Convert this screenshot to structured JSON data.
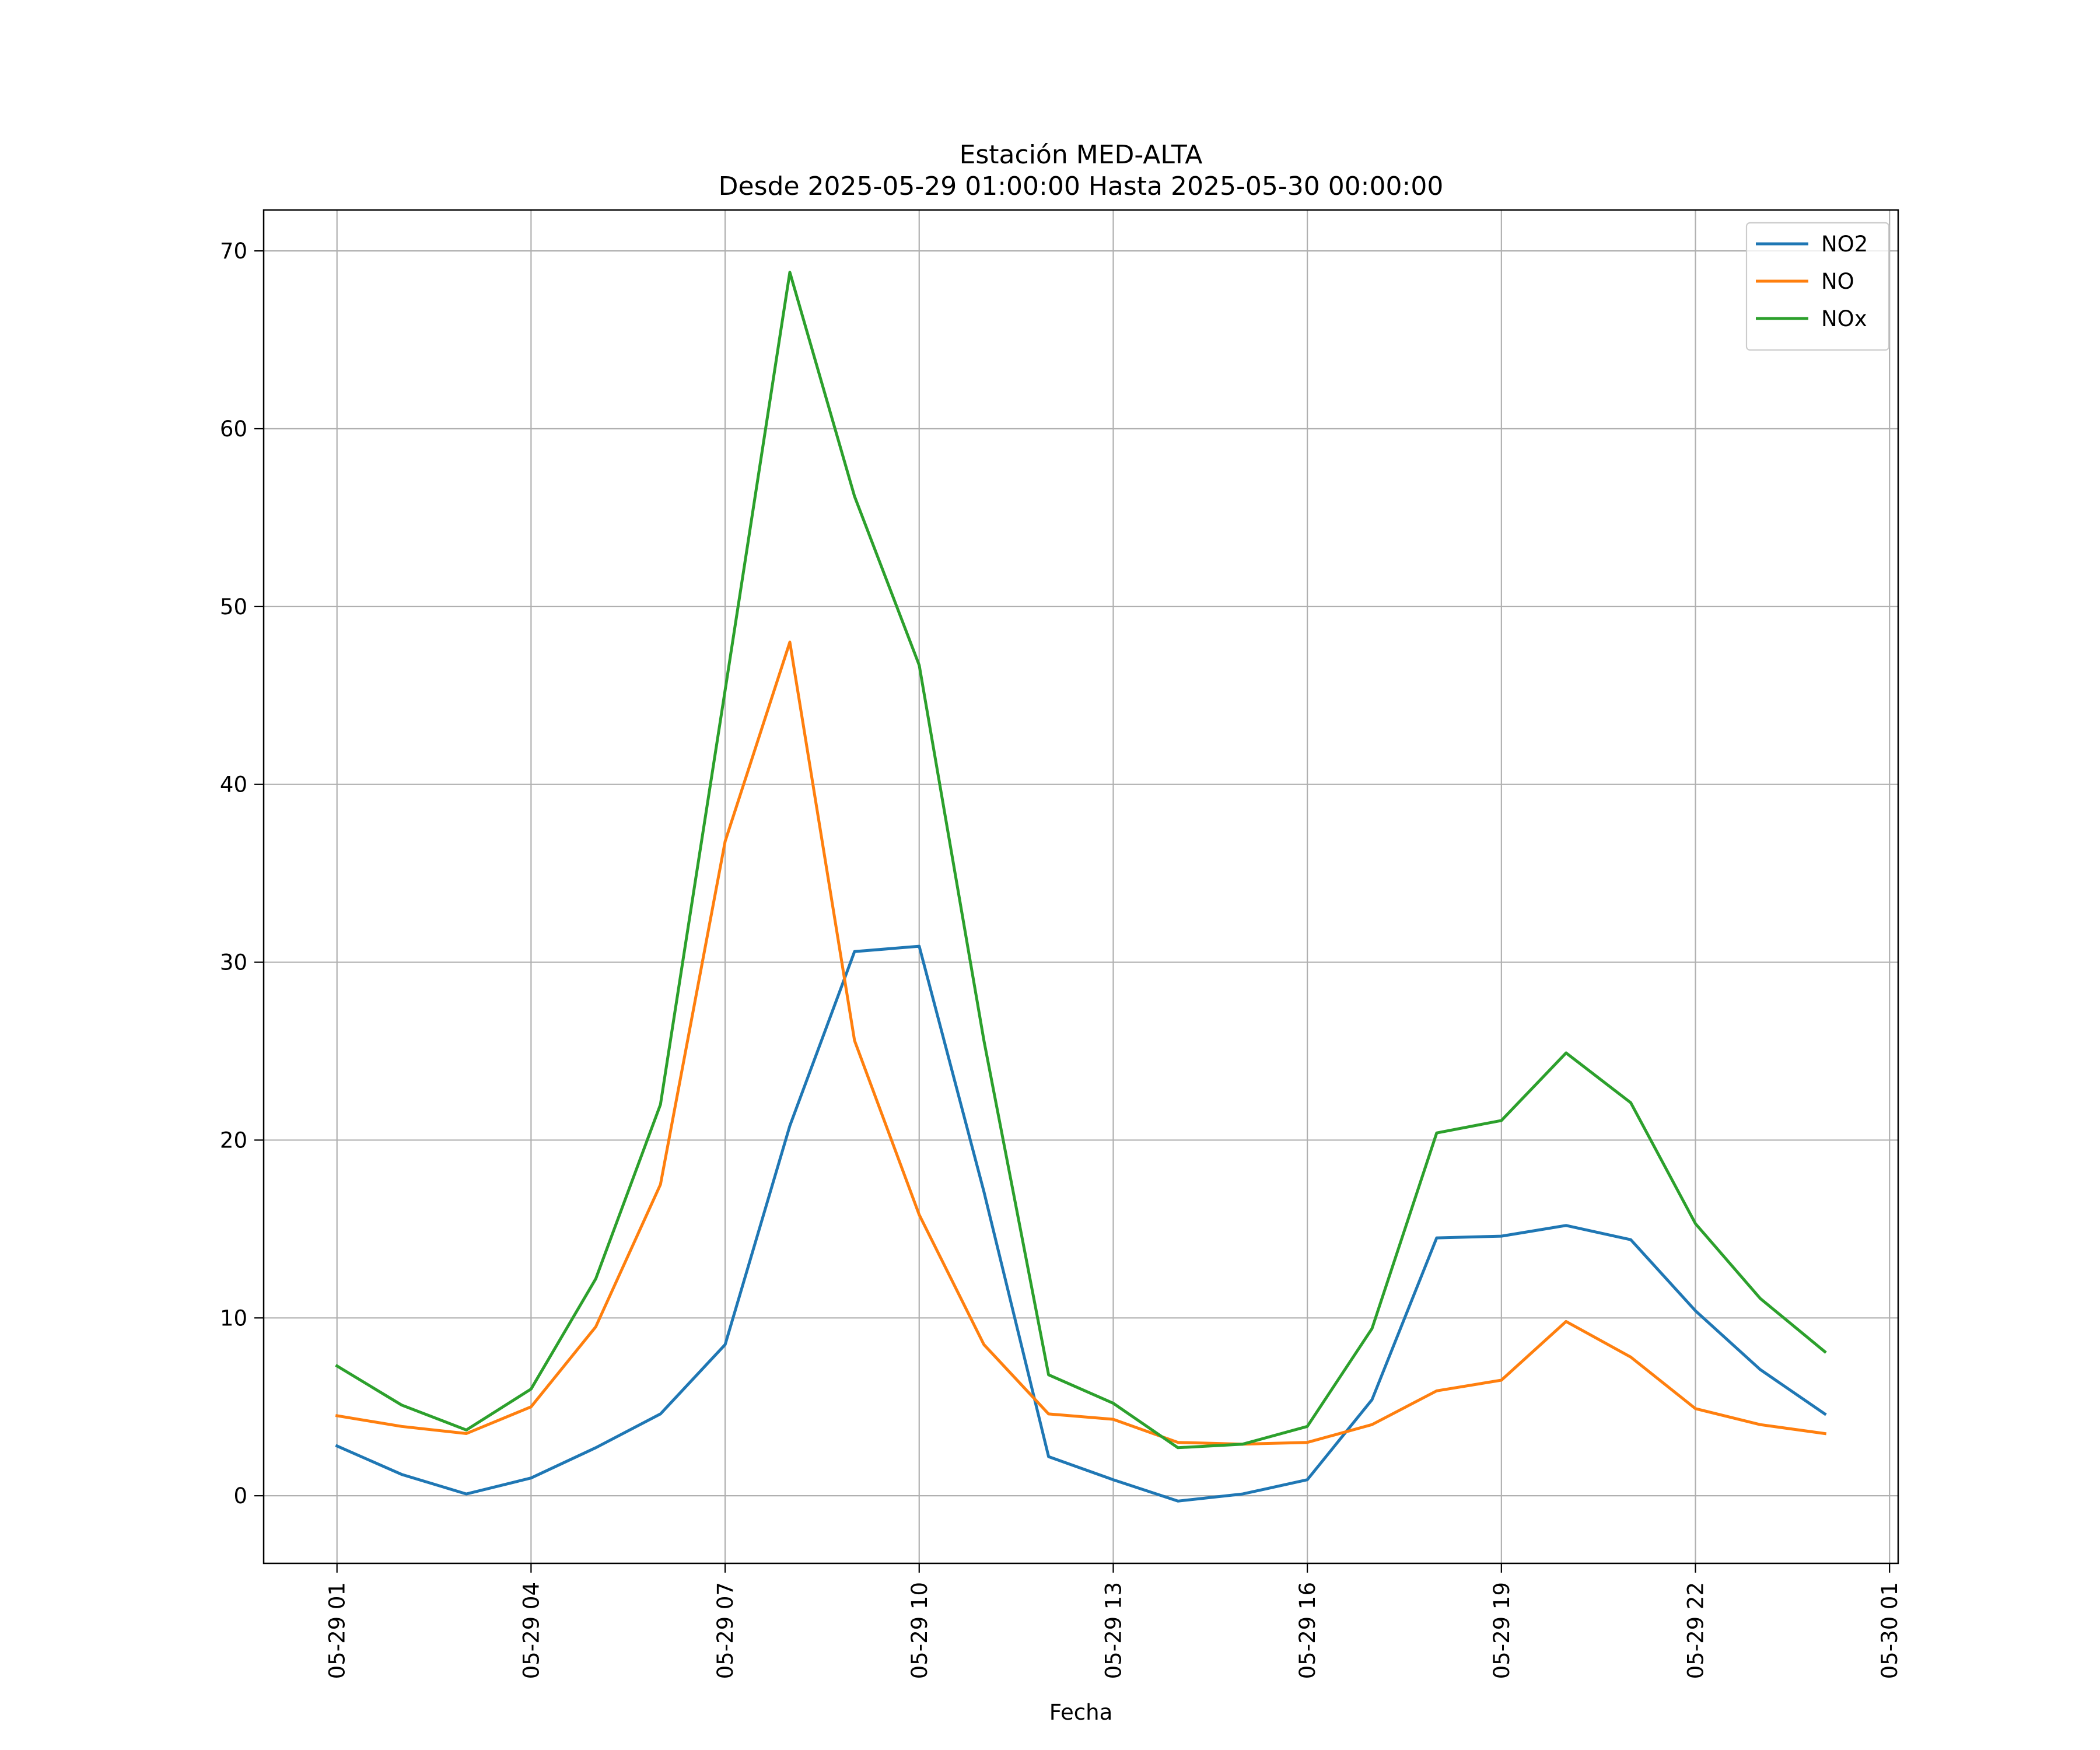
{
  "chart_data": {
    "type": "line",
    "title": "Estación MED-ALTA",
    "subtitle": "Desde 2025-05-29 01:00:00 Hasta 2025-05-30 00:00:00",
    "xlabel": "Fecha",
    "ylabel": "",
    "x": [
      "2025-05-29 01:00",
      "2025-05-29 02:00",
      "2025-05-29 03:00",
      "2025-05-29 04:00",
      "2025-05-29 05:00",
      "2025-05-29 06:00",
      "2025-05-29 07:00",
      "2025-05-29 08:00",
      "2025-05-29 09:00",
      "2025-05-29 10:00",
      "2025-05-29 11:00",
      "2025-05-29 12:00",
      "2025-05-29 13:00",
      "2025-05-29 14:00",
      "2025-05-29 15:00",
      "2025-05-29 16:00",
      "2025-05-29 17:00",
      "2025-05-29 18:00",
      "2025-05-29 19:00",
      "2025-05-29 20:00",
      "2025-05-29 21:00",
      "2025-05-29 22:00",
      "2025-05-29 23:00",
      "2025-05-30 00:00"
    ],
    "xlim": [
      "2025-05-28 23:52",
      "2025-05-30 01:08"
    ],
    "xticks": [
      {
        "x": "2025-05-29 01:00",
        "label": "05-29 01"
      },
      {
        "x": "2025-05-29 04:00",
        "label": "05-29 04"
      },
      {
        "x": "2025-05-29 07:00",
        "label": "05-29 07"
      },
      {
        "x": "2025-05-29 10:00",
        "label": "05-29 10"
      },
      {
        "x": "2025-05-29 13:00",
        "label": "05-29 13"
      },
      {
        "x": "2025-05-29 16:00",
        "label": "05-29 16"
      },
      {
        "x": "2025-05-29 19:00",
        "label": "05-29 19"
      },
      {
        "x": "2025-05-29 22:00",
        "label": "05-29 22"
      },
      {
        "x": "2025-05-30 01:00",
        "label": "05-30 01"
      }
    ],
    "ylim": [
      -3.8,
      72.3
    ],
    "yticks": [
      0,
      10,
      20,
      30,
      40,
      50,
      60,
      70
    ],
    "grid": true,
    "legend_position": "top-right",
    "series": [
      {
        "name": "NO2",
        "color": "#1f77b4",
        "values": [
          2.8,
          1.2,
          0.1,
          1.0,
          2.7,
          4.6,
          8.5,
          20.8,
          30.6,
          30.9,
          17.1,
          2.2,
          0.9,
          -0.3,
          0.1,
          0.9,
          5.4,
          14.5,
          14.6,
          15.2,
          14.4,
          10.4,
          7.1,
          4.6
        ]
      },
      {
        "name": "NO",
        "color": "#ff7f0e",
        "values": [
          4.5,
          3.9,
          3.5,
          5.0,
          9.5,
          17.5,
          36.8,
          48.0,
          25.6,
          15.8,
          8.5,
          4.6,
          4.3,
          3.0,
          2.9,
          3.0,
          4.0,
          5.9,
          6.5,
          9.8,
          7.8,
          4.9,
          4.0,
          3.5
        ]
      },
      {
        "name": "NOx",
        "color": "#2ca02c",
        "values": [
          7.3,
          5.1,
          3.7,
          6.0,
          12.2,
          22.0,
          45.3,
          68.8,
          56.2,
          46.7,
          25.6,
          6.8,
          5.2,
          2.7,
          2.9,
          3.9,
          9.4,
          20.4,
          21.1,
          24.9,
          22.1,
          15.3,
          11.1,
          8.1
        ]
      }
    ]
  }
}
